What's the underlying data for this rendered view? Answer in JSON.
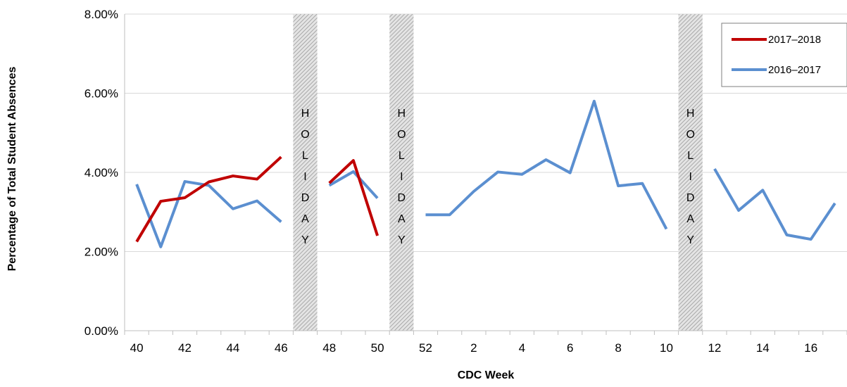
{
  "chart_data": {
    "type": "line",
    "title": "",
    "xlabel": "CDC Week",
    "ylabel": "Percentage of Total Student Absences",
    "ylim": [
      0,
      8
    ],
    "y_ticks": [
      "0.00%",
      "2.00%",
      "4.00%",
      "6.00%",
      "8.00%"
    ],
    "x_categories": [
      40,
      41,
      42,
      43,
      44,
      45,
      46,
      47,
      48,
      49,
      50,
      51,
      52,
      1,
      2,
      3,
      4,
      5,
      6,
      7,
      8,
      9,
      10,
      11,
      12,
      13,
      14,
      15,
      16,
      17
    ],
    "x_tick_labels": [
      "40",
      "42",
      "44",
      "46",
      "48",
      "50",
      "52",
      "2",
      "4",
      "6",
      "8",
      "10",
      "12",
      "14",
      "16"
    ],
    "grid": "horizontal",
    "legend_position": "top-right",
    "holiday_label": [
      "H",
      "O",
      "L",
      "I",
      "D",
      "A",
      "Y"
    ],
    "holiday_weeks": [
      47,
      51,
      11
    ],
    "series": [
      {
        "name": "2017–2018",
        "color": "#C00000",
        "values": [
          2.25,
          3.27,
          3.36,
          3.76,
          3.91,
          3.83,
          4.39,
          null,
          3.73,
          4.3,
          2.4,
          null,
          null,
          null,
          null,
          null,
          null,
          null,
          null,
          null,
          null,
          null,
          null,
          null,
          null,
          null,
          null,
          null,
          null,
          null
        ]
      },
      {
        "name": "2016–2017",
        "color": "#5B8FD0",
        "values": [
          3.7,
          2.12,
          3.77,
          3.67,
          3.08,
          3.28,
          2.75,
          null,
          3.67,
          4.02,
          3.35,
          null,
          2.93,
          2.93,
          3.52,
          4.01,
          3.95,
          4.32,
          3.99,
          5.8,
          3.66,
          3.72,
          2.57,
          null,
          4.09,
          3.04,
          3.55,
          2.42,
          2.31,
          3.22
        ]
      }
    ]
  }
}
